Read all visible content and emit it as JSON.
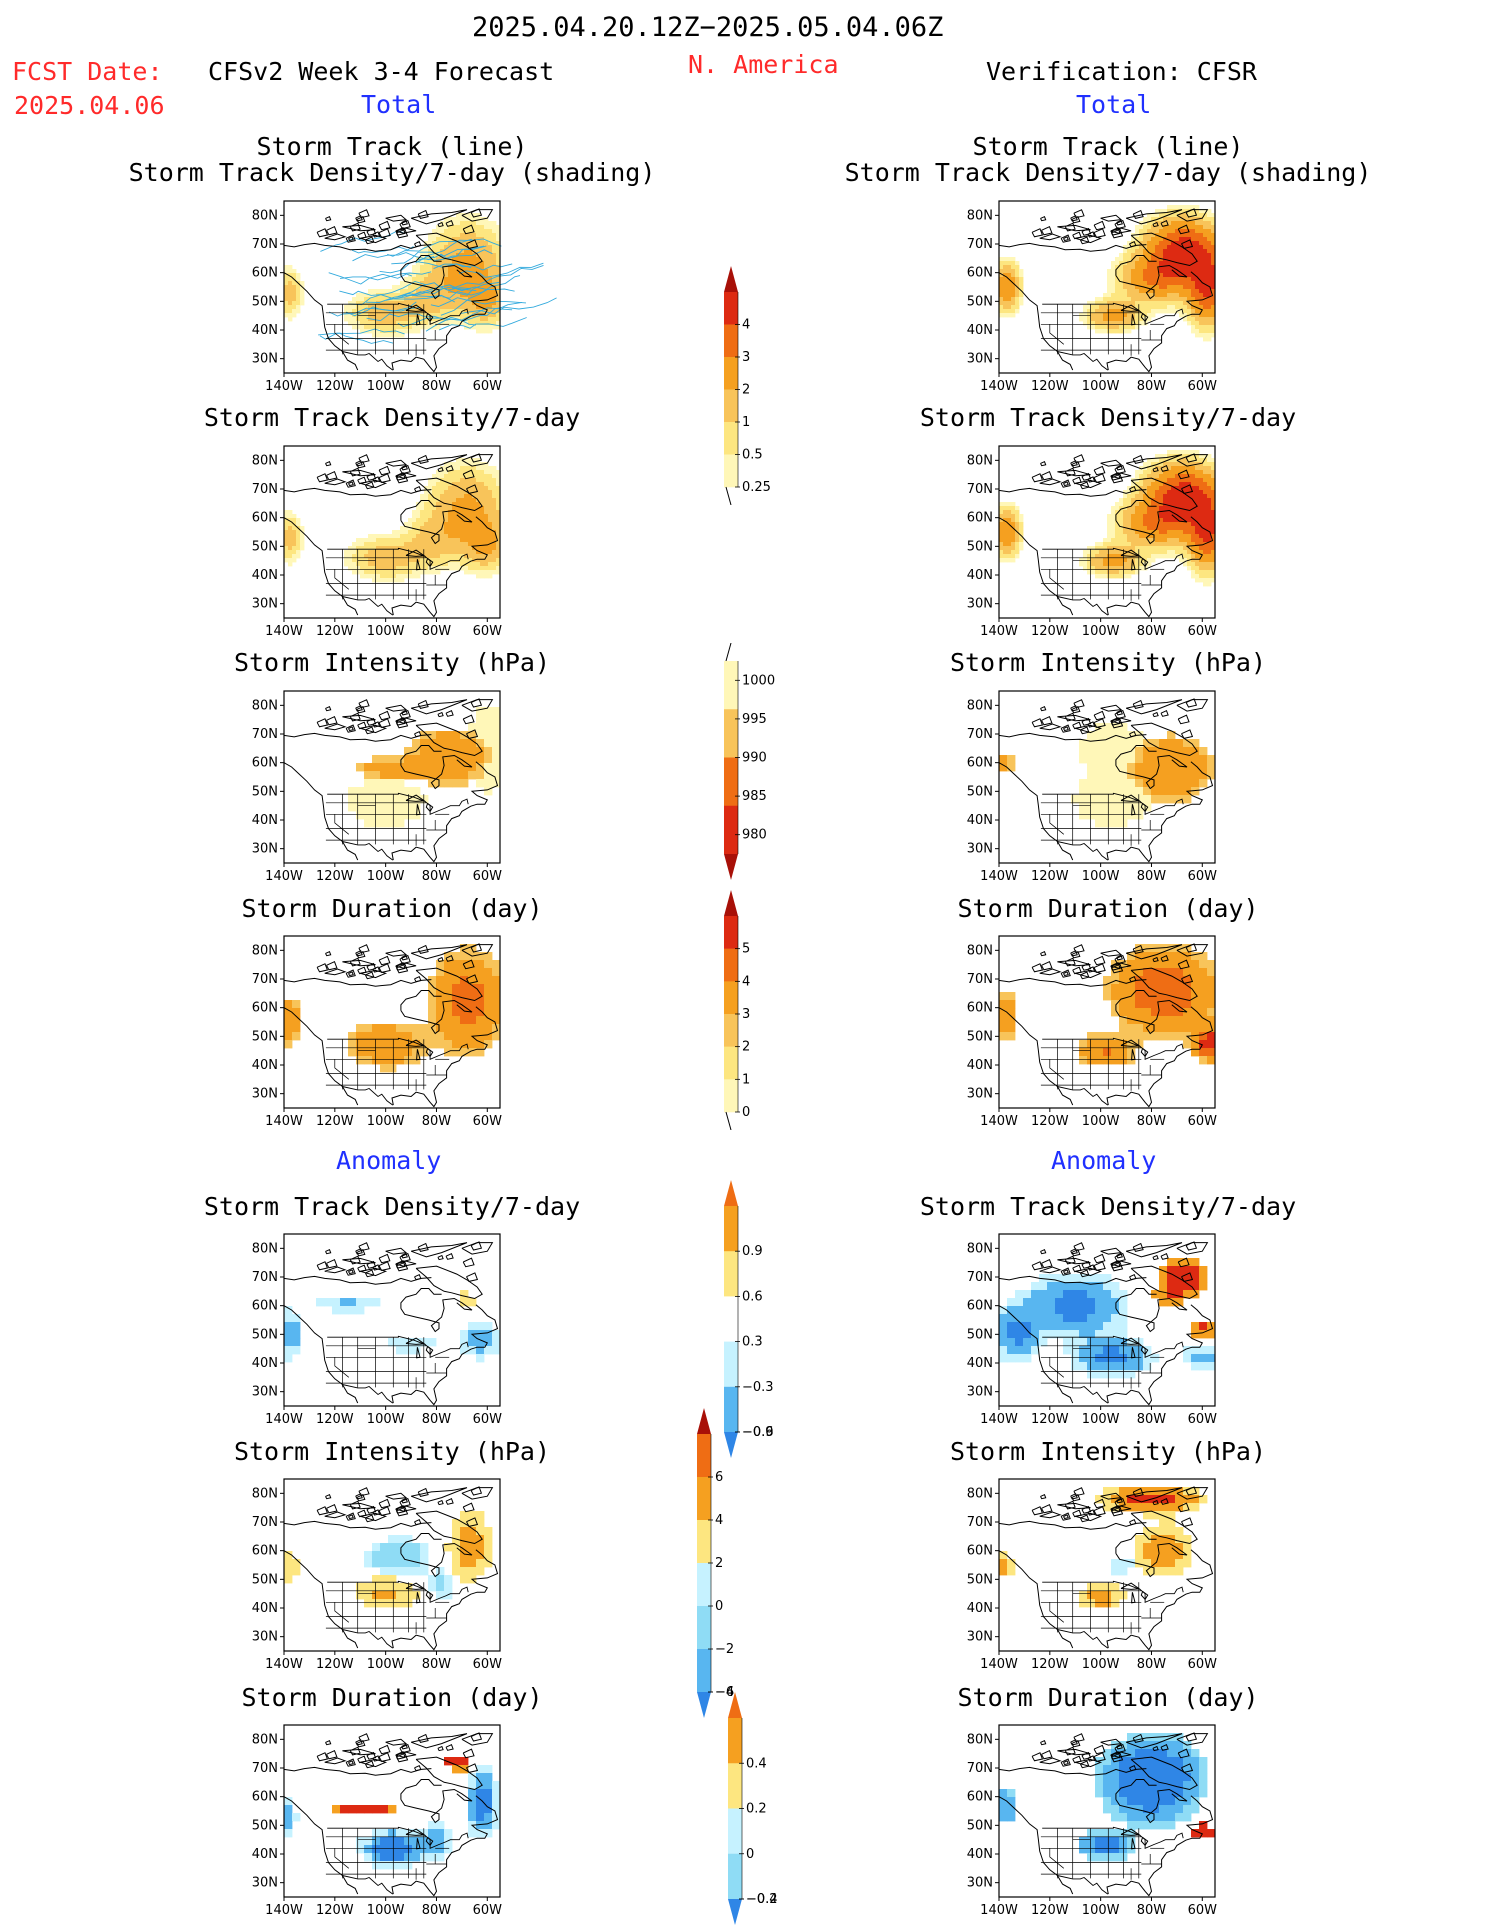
{
  "header": {
    "period": "2025.04.20.12Z−2025.05.04.06Z",
    "fcst_label": "FCST Date:",
    "fcst_date": "2025.04.06",
    "model_title": "CFSv2 Week 3-4 Forecast",
    "region": "N. America",
    "verification": "Verification: CFSR",
    "total_left": "Total",
    "total_right": "Total",
    "anomaly_left": "Anomaly",
    "anomaly_right": "Anomaly"
  },
  "titles": {
    "track_line": "Storm Track (line)",
    "track_shading": "Storm Track Density/7-day (shading)",
    "density": "Storm Track Density/7-day",
    "intensity": "Storm Intensity (hPa)",
    "duration": "Storm Duration (day)"
  },
  "axes": {
    "lat_ticks": [
      "80N",
      "70N",
      "60N",
      "50N",
      "40N",
      "30N"
    ],
    "lon_ticks": [
      "140W",
      "120W",
      "100W",
      "80W",
      "60W"
    ]
  },
  "colors": {
    "warm": [
      "#fff7b8",
      "#fde680",
      "#f8c45a",
      "#f5a020",
      "#ef6d14",
      "#dd2a12",
      "#a81008"
    ],
    "cool": [
      "#c6f2ff",
      "#8fdcf5",
      "#58b6f0",
      "#2f86e6",
      "#1d55d2"
    ],
    "red_text": "#ff2a2a",
    "blue_text": "#2030ff",
    "track_line": "#33aadd"
  },
  "chart_data": [
    {
      "type": "heatmap",
      "panel": "forecast-track-density-shading",
      "title": "Storm Track (line)",
      "subtitle": "Storm Track Density/7-day (shading)",
      "xlabel": "",
      "ylabel": "",
      "xlim": [
        -140,
        -55
      ],
      "ylim": [
        25,
        85
      ],
      "grid": false
    },
    {
      "type": "heatmap",
      "panel": "cfsr-track-density-shading",
      "title": "Storm Track (line)",
      "subtitle": "Storm Track Density/7-day (shading)",
      "xlabel": "",
      "ylabel": "",
      "xlim": [
        -140,
        -55
      ],
      "ylim": [
        25,
        85
      ],
      "grid": false
    },
    {
      "type": "heatmap",
      "panel": "forecast-density",
      "title": "Storm Track Density/7-day",
      "xlim": [
        -140,
        -55
      ],
      "ylim": [
        25,
        85
      ],
      "grid": false
    },
    {
      "type": "heatmap",
      "panel": "cfsr-density",
      "title": "Storm Track Density/7-day",
      "xlim": [
        -140,
        -55
      ],
      "ylim": [
        25,
        85
      ],
      "grid": false
    },
    {
      "type": "heatmap",
      "panel": "forecast-intensity",
      "title": "Storm Intensity (hPa)",
      "xlim": [
        -140,
        -55
      ],
      "ylim": [
        25,
        85
      ],
      "grid": false
    },
    {
      "type": "heatmap",
      "panel": "cfsr-intensity",
      "title": "Storm Intensity (hPa)",
      "xlim": [
        -140,
        -55
      ],
      "ylim": [
        25,
        85
      ],
      "grid": false
    },
    {
      "type": "heatmap",
      "panel": "forecast-duration",
      "title": "Storm Duration (day)",
      "xlim": [
        -140,
        -55
      ],
      "ylim": [
        25,
        85
      ],
      "grid": false
    },
    {
      "type": "heatmap",
      "panel": "cfsr-duration",
      "title": "Storm Duration (day)",
      "xlim": [
        -140,
        -55
      ],
      "ylim": [
        25,
        85
      ],
      "grid": false
    },
    {
      "type": "heatmap",
      "panel": "forecast-density-anomaly",
      "title": "Storm Track Density/7-day",
      "xlim": [
        -140,
        -55
      ],
      "ylim": [
        25,
        85
      ],
      "grid": false
    },
    {
      "type": "heatmap",
      "panel": "cfsr-density-anomaly",
      "title": "Storm Track Density/7-day",
      "xlim": [
        -140,
        -55
      ],
      "ylim": [
        25,
        85
      ],
      "grid": false
    },
    {
      "type": "heatmap",
      "panel": "forecast-intensity-anomaly",
      "title": "Storm Intensity (hPa)",
      "xlim": [
        -140,
        -55
      ],
      "ylim": [
        25,
        85
      ],
      "grid": false
    },
    {
      "type": "heatmap",
      "panel": "cfsr-intensity-anomaly",
      "title": "Storm Intensity (hPa)",
      "xlim": [
        -140,
        -55
      ],
      "ylim": [
        25,
        85
      ],
      "grid": false
    },
    {
      "type": "heatmap",
      "panel": "forecast-duration-anomaly",
      "title": "Storm Duration (day)",
      "xlim": [
        -140,
        -55
      ],
      "ylim": [
        25,
        85
      ],
      "grid": false
    },
    {
      "type": "heatmap",
      "panel": "cfsr-duration-anomaly",
      "title": "Storm Duration (day)",
      "xlim": [
        -140,
        -55
      ],
      "ylim": [
        25,
        85
      ],
      "grid": false
    }
  ],
  "colorbars": {
    "density": {
      "labels": [
        "4",
        "3",
        "2",
        "1",
        "0.5",
        "0.25"
      ]
    },
    "intensity": {
      "labels": [
        "1000",
        "995",
        "990",
        "985",
        "980"
      ]
    },
    "duration": {
      "labels": [
        "5",
        "4",
        "3",
        "2",
        "1",
        "0"
      ]
    },
    "density_anom": {
      "labels": [
        "0.9",
        "0.6",
        "0.3",
        "−0.3",
        "−0.6",
        "−0.9"
      ]
    },
    "intensity_anom": {
      "labels": [
        "6",
        "4",
        "2",
        "0",
        "−2",
        "−4",
        "−6"
      ]
    },
    "duration_anom": {
      "labels": [
        "0.4",
        "0.2",
        "0",
        "−0.2",
        "−0.4"
      ]
    }
  }
}
